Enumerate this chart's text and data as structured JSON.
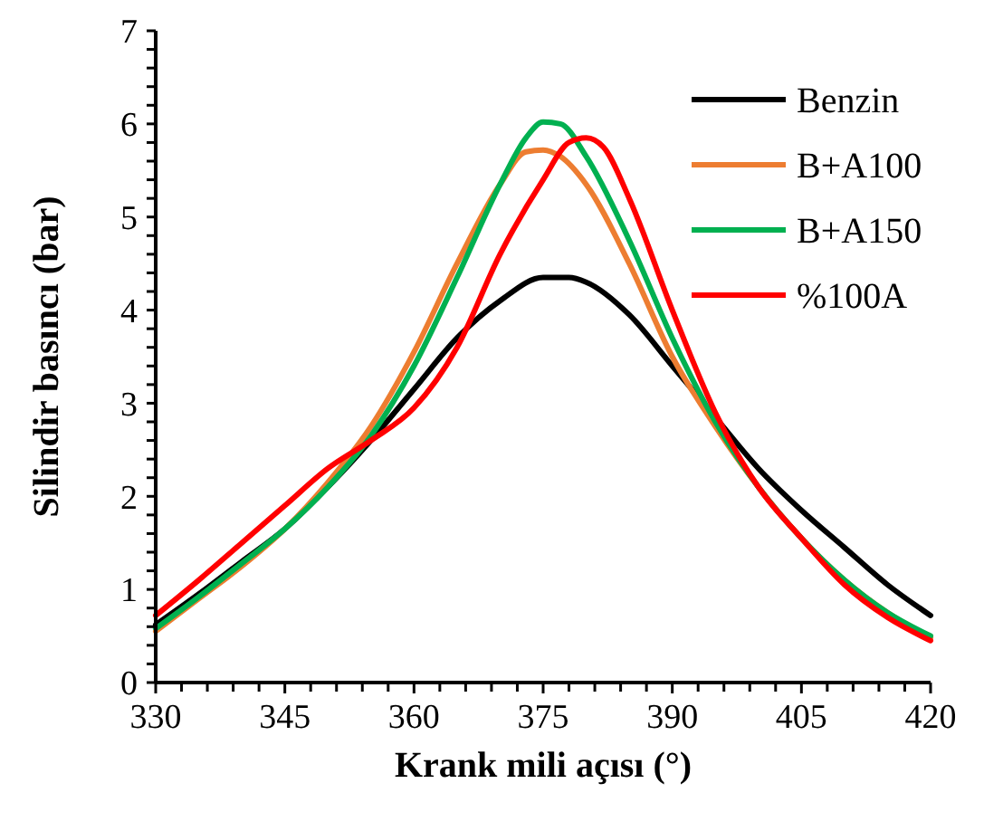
{
  "chart_data": {
    "type": "line",
    "xlabel": "Krank mili açısı (°)",
    "ylabel": "Silindir basıncı (bar)",
    "xlim": [
      330,
      420
    ],
    "ylim": [
      0,
      7
    ],
    "xticks": [
      330,
      {
        "value": 333,
        "label": null
      },
      {
        "value": 336,
        "label": null
      },
      {
        "value": 339,
        "label": null
      },
      {
        "value": 342,
        "label": null
      },
      345,
      {
        "value": 348,
        "label": null
      },
      {
        "value": 351,
        "label": null
      },
      {
        "value": 354,
        "label": null
      },
      {
        "value": 357,
        "label": null
      },
      360,
      {
        "value": 363,
        "label": null
      },
      {
        "value": 366,
        "label": null
      },
      {
        "value": 369,
        "label": null
      },
      {
        "value": 372,
        "label": null
      },
      375,
      {
        "value": 378,
        "label": null
      },
      {
        "value": 381,
        "label": null
      },
      {
        "value": 384,
        "label": null
      },
      {
        "value": 387,
        "label": null
      },
      390,
      {
        "value": 393,
        "label": null
      },
      {
        "value": 396,
        "label": null
      },
      {
        "value": 399,
        "label": null
      },
      {
        "value": 402,
        "label": null
      },
      405,
      {
        "value": 408,
        "label": null
      },
      {
        "value": 411,
        "label": null
      },
      {
        "value": 414,
        "label": null
      },
      {
        "value": 417,
        "label": null
      },
      420
    ],
    "yticks": [
      0,
      {
        "value": 0.2,
        "label": null
      },
      {
        "value": 0.4,
        "label": null
      },
      {
        "value": 0.6,
        "label": null
      },
      {
        "value": 0.8,
        "label": null
      },
      1,
      {
        "value": 1.2,
        "label": null
      },
      {
        "value": 1.4,
        "label": null
      },
      {
        "value": 1.6,
        "label": null
      },
      {
        "value": 1.8,
        "label": null
      },
      2,
      {
        "value": 2.2,
        "label": null
      },
      {
        "value": 2.4,
        "label": null
      },
      {
        "value": 2.6,
        "label": null
      },
      {
        "value": 2.8,
        "label": null
      },
      3,
      {
        "value": 3.2,
        "label": null
      },
      {
        "value": 3.4,
        "label": null
      },
      {
        "value": 3.6,
        "label": null
      },
      {
        "value": 3.8,
        "label": null
      },
      4,
      {
        "value": 4.2,
        "label": null
      },
      {
        "value": 4.4,
        "label": null
      },
      {
        "value": 4.6,
        "label": null
      },
      {
        "value": 4.8,
        "label": null
      },
      5,
      {
        "value": 5.2,
        "label": null
      },
      {
        "value": 5.4,
        "label": null
      },
      {
        "value": 5.6,
        "label": null
      },
      {
        "value": 5.8,
        "label": null
      },
      6,
      {
        "value": 6.2,
        "label": null
      },
      {
        "value": 6.4,
        "label": null
      },
      {
        "value": 6.6,
        "label": null
      },
      {
        "value": 6.8,
        "label": null
      },
      7
    ],
    "legend": "top right",
    "grid": false,
    "marker": "none",
    "line_style": "solid",
    "series": [
      {
        "name": "Benzin",
        "color": "#000000",
        "x": [
          330,
          335,
          340,
          345,
          350,
          355,
          360,
          365,
          370,
          375,
          378,
          380,
          385,
          390,
          395,
          400,
          405,
          410,
          415,
          420
        ],
        "values": [
          0.62,
          0.95,
          1.3,
          1.65,
          2.1,
          2.6,
          3.15,
          3.7,
          4.1,
          4.35,
          4.35,
          4.3,
          3.95,
          3.4,
          2.85,
          2.3,
          1.85,
          1.45,
          1.05,
          0.72
        ]
      },
      {
        "name": "B+A100",
        "color": "#ed7d31",
        "x": [
          330,
          335,
          340,
          345,
          350,
          355,
          360,
          365,
          370,
          373,
          375,
          377,
          380,
          385,
          390,
          395,
          400,
          405,
          410,
          415,
          420
        ],
        "values": [
          0.55,
          0.9,
          1.25,
          1.65,
          2.15,
          2.75,
          3.55,
          4.5,
          5.35,
          5.7,
          5.72,
          5.65,
          5.35,
          4.5,
          3.5,
          2.75,
          2.1,
          1.55,
          1.1,
          0.75,
          0.48
        ]
      },
      {
        "name": "B+A150",
        "color": "#00b050",
        "x": [
          330,
          335,
          340,
          345,
          350,
          355,
          360,
          365,
          370,
          373,
          375,
          377,
          380,
          385,
          390,
          395,
          400,
          405,
          410,
          415,
          420
        ],
        "values": [
          0.58,
          0.92,
          1.28,
          1.65,
          2.1,
          2.65,
          3.4,
          4.35,
          5.35,
          5.85,
          6.02,
          6.0,
          5.65,
          4.75,
          3.7,
          2.8,
          2.1,
          1.55,
          1.1,
          0.75,
          0.5
        ]
      },
      {
        "name": "%100A",
        "color": "#ff0000",
        "x": [
          330,
          335,
          340,
          345,
          350,
          355,
          360,
          365,
          370,
          375,
          378,
          380,
          382,
          385,
          390,
          395,
          400,
          405,
          410,
          415,
          420
        ],
        "values": [
          0.72,
          1.1,
          1.5,
          1.9,
          2.3,
          2.6,
          2.95,
          3.6,
          4.6,
          5.4,
          5.8,
          5.85,
          5.75,
          5.2,
          4.0,
          2.9,
          2.1,
          1.55,
          1.05,
          0.7,
          0.45
        ]
      }
    ]
  }
}
